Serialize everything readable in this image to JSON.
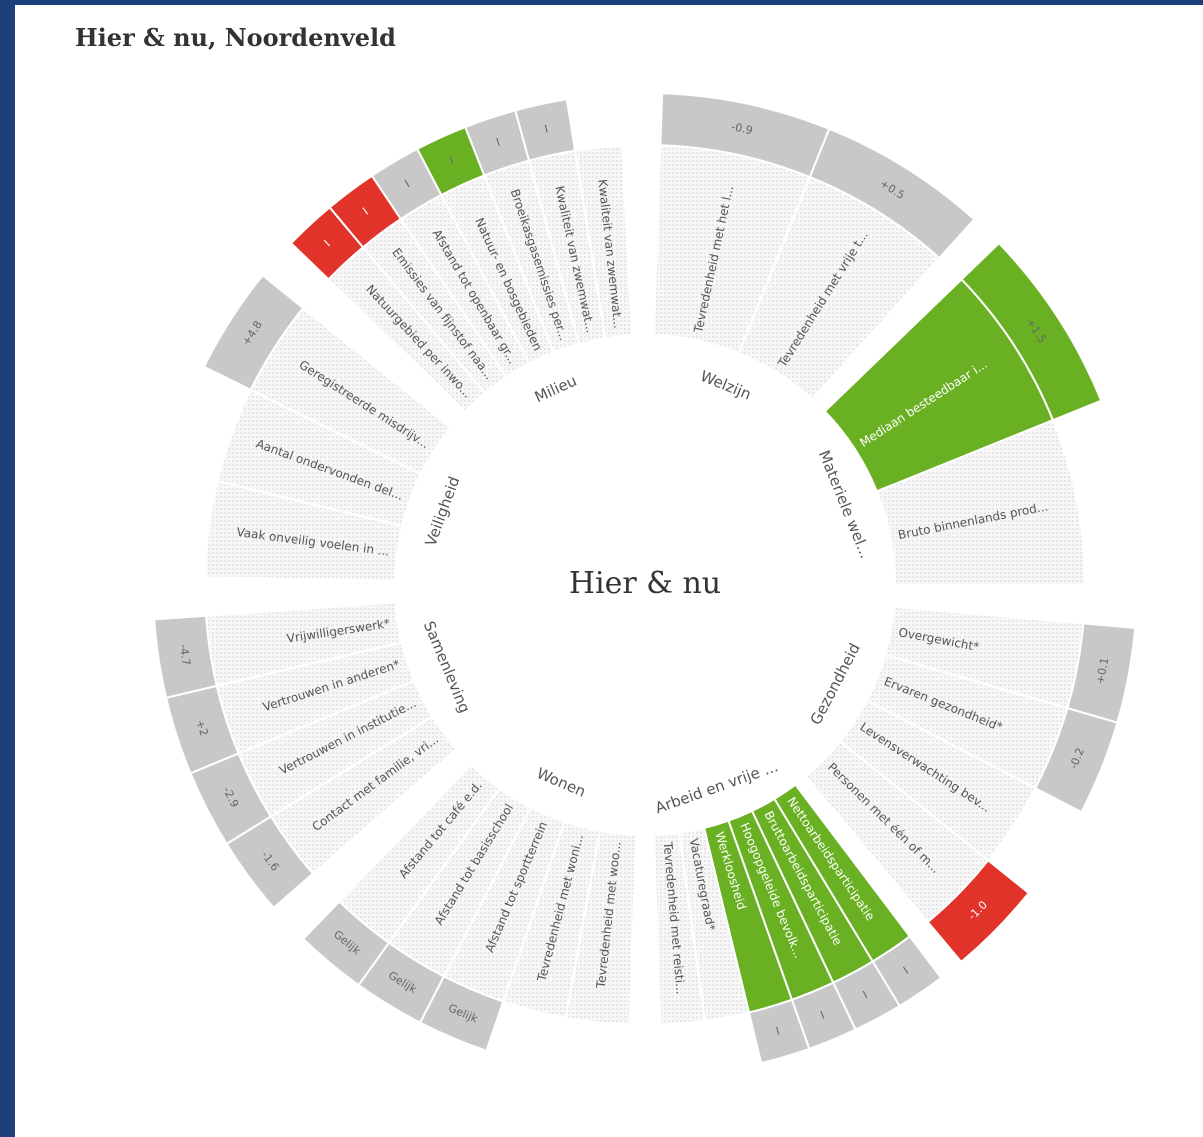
{
  "header": {
    "title": "Hier & nu, Noordenveld"
  },
  "center_label": "Hier & nu",
  "sectors": [
    {
      "name": "Welzijn",
      "indicators": [
        {
          "label": "Tevredenheid met het l...",
          "badge": "-0.9",
          "badge_color": "#c8c8c8"
        },
        {
          "label": "Tevredenheid met vrije t...",
          "badge": "+0.5",
          "badge_color": "#c8c8c8"
        }
      ]
    },
    {
      "name": "Materiele wel...",
      "indicators": [
        {
          "label": "Mediaan besteedbaar i...",
          "badge": "+1.5",
          "badge_color": "#6ab023",
          "fill": "#6ab023"
        },
        {
          "label": "Bruto binnenlands prod..."
        }
      ]
    },
    {
      "name": "Gezondheid",
      "indicators": [
        {
          "label": "Overgewicht*",
          "badge": "+0.1",
          "badge_color": "#c8c8c8"
        },
        {
          "label": "Ervaren gezondheid*",
          "badge": "-0.2",
          "badge_color": "#c8c8c8"
        },
        {
          "label": "Levensverwachting bev..."
        },
        {
          "label": "Personen met één of m...",
          "badge": "-1.0",
          "badge_color": "#e2332b"
        }
      ]
    },
    {
      "name": "Arbeid en vrije ...",
      "indicators": [
        {
          "label": "Nettoarbeidsparticipatie",
          "badge": "I",
          "badge_color": "#c8c8c8",
          "fill": "#6ab023"
        },
        {
          "label": "Bruttoarbeidsparticipatie",
          "badge": "I",
          "badge_color": "#c8c8c8",
          "fill": "#6ab023"
        },
        {
          "label": "Hoogopgeleide bevolk...",
          "badge": "I",
          "badge_color": "#c8c8c8",
          "fill": "#6ab023"
        },
        {
          "label": "Werkloosheid",
          "badge": "I",
          "badge_color": "#c8c8c8",
          "fill": "#6ab023"
        },
        {
          "label": "Vacaturegraad*"
        },
        {
          "label": "Tevredenheid met reisti..."
        }
      ]
    },
    {
      "name": "Wonen",
      "indicators": [
        {
          "label": "Tevredenheid met woo..."
        },
        {
          "label": "Tevredenheid met woni..."
        },
        {
          "label": "Afstand tot sportterrein",
          "badge": "Gelijk",
          "badge_color": "#c8c8c8"
        },
        {
          "label": "Afstand tot basisschool",
          "badge": "Gelijk",
          "badge_color": "#c8c8c8"
        },
        {
          "label": "Afstand tot café e.d.",
          "badge": "Gelijk",
          "badge_color": "#c8c8c8"
        }
      ]
    },
    {
      "name": "Samenleving",
      "indicators": [
        {
          "label": "Contact met familie, vri...",
          "badge": "-1.6",
          "badge_color": "#c8c8c8"
        },
        {
          "label": "Vertrouwen in institutie...",
          "badge": "-2.9",
          "badge_color": "#c8c8c8"
        },
        {
          "label": "Vertrouwen in anderen*",
          "badge": "+2",
          "badge_color": "#c8c8c8"
        },
        {
          "label": "Vrijwilligerswerk*",
          "badge": "-4.7",
          "badge_color": "#c8c8c8"
        }
      ]
    },
    {
      "name": "Veiligheid",
      "indicators": [
        {
          "label": "Vaak onveilig voelen in ..."
        },
        {
          "label": "Aantal ondervonden del..."
        },
        {
          "label": "Geregistreerde misdrijv...",
          "badge": "+4.8",
          "badge_color": "#c8c8c8"
        }
      ]
    },
    {
      "name": "Milieu",
      "indicators": [
        {
          "label": "Natuurgebied per inwo...",
          "badge": "I",
          "badge_color": "#e2332b"
        },
        {
          "label": "Emissies van fijnstof naa...",
          "badge": "I",
          "badge_color": "#e2332b"
        },
        {
          "label": "Afstand tot openbaar gr...",
          "badge": "I",
          "badge_color": "#c8c8c8"
        },
        {
          "label": "Natuur- en bosgebieden",
          "badge": "I",
          "badge_color": "#6ab023"
        },
        {
          "label": "Broeikasgasemissies per...",
          "badge": "I",
          "badge_color": "#c8c8c8"
        },
        {
          "label": "Kwaliteit van zwemwat...",
          "badge": "I",
          "badge_color": "#c8c8c8"
        },
        {
          "label": "Kwaliteit van zwemwat..."
        }
      ]
    }
  ]
}
